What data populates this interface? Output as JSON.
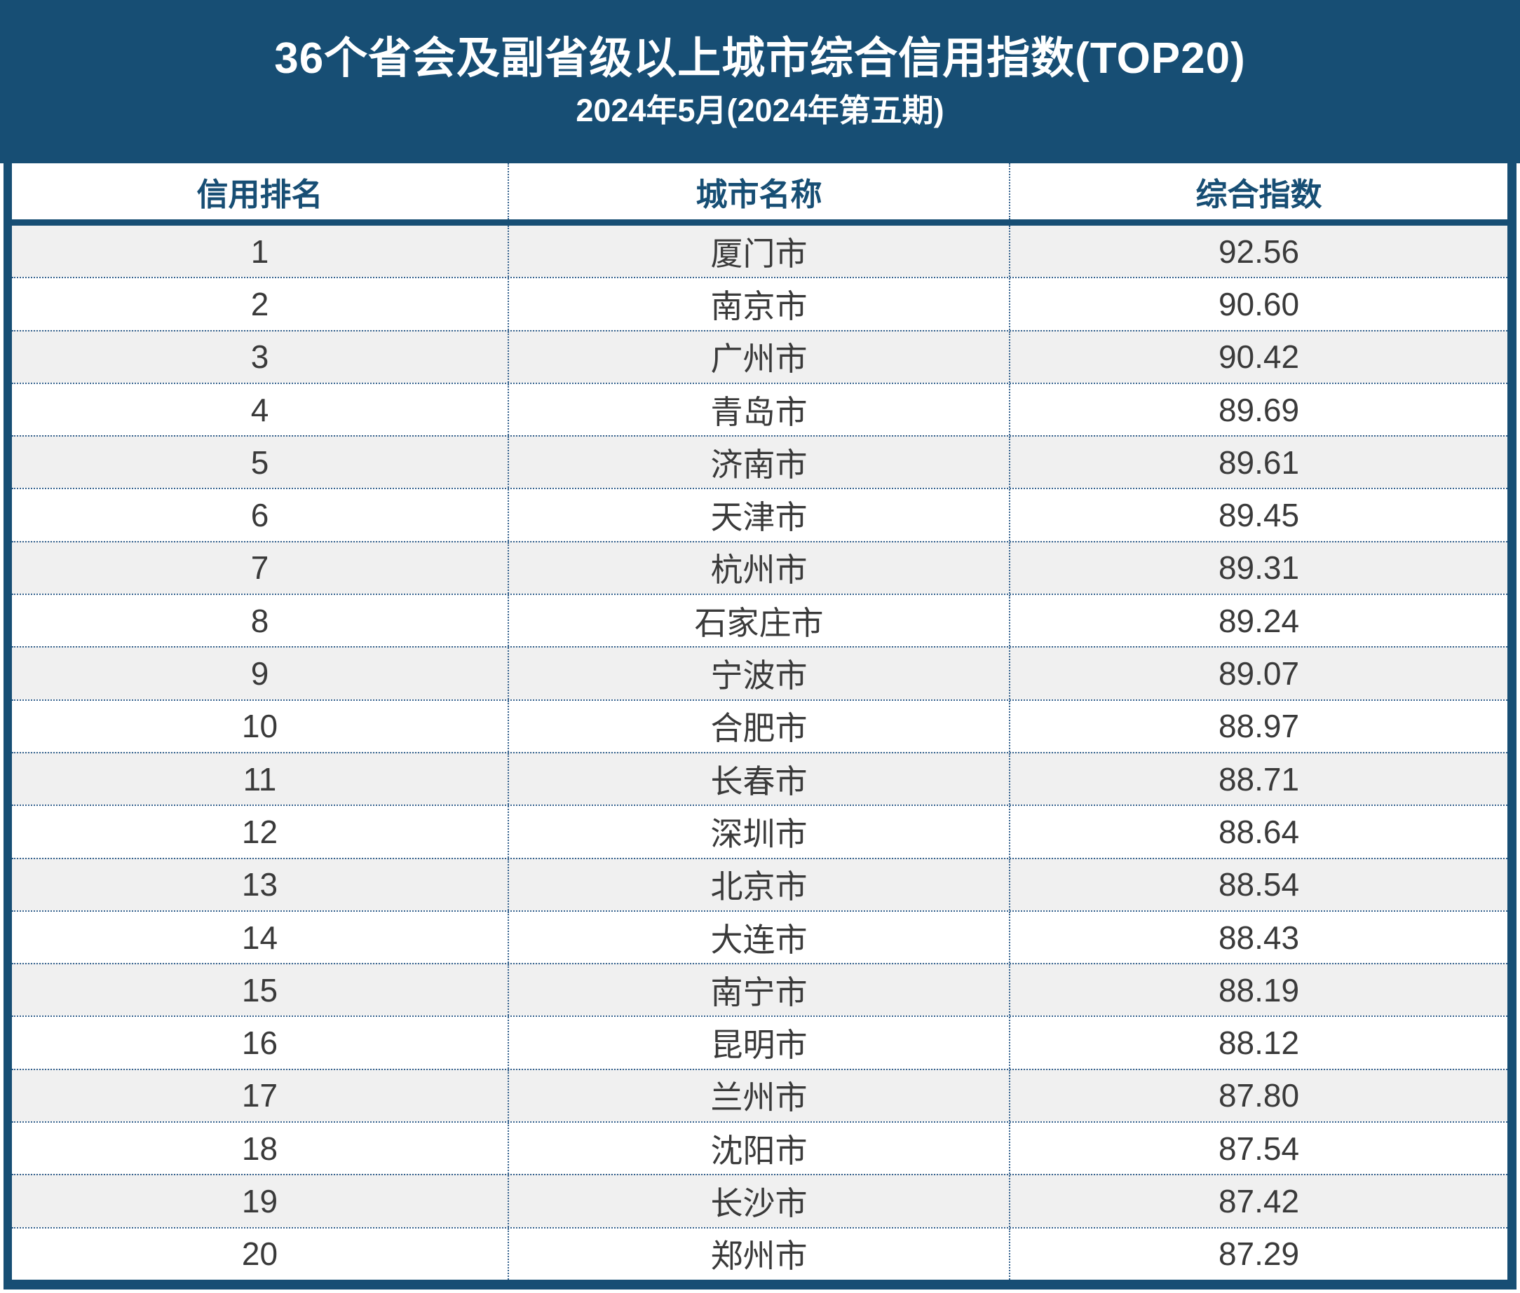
{
  "title": {
    "line1": "36个省会及副省级以上城市综合信用指数(TOP20)",
    "line2": "2024年5月(2024年第五期)"
  },
  "chart_data": {
    "type": "table",
    "title": "36个省会及副省级以上城市综合信用指数(TOP20)",
    "subtitle": "2024年5月(2024年第五期)",
    "columns": [
      "信用排名",
      "城市名称",
      "综合指数"
    ],
    "rows": [
      [
        1,
        "厦门市",
        "92.56"
      ],
      [
        2,
        "南京市",
        "90.60"
      ],
      [
        3,
        "广州市",
        "90.42"
      ],
      [
        4,
        "青岛市",
        "89.69"
      ],
      [
        5,
        "济南市",
        "89.61"
      ],
      [
        6,
        "天津市",
        "89.45"
      ],
      [
        7,
        "杭州市",
        "89.31"
      ],
      [
        8,
        "石家庄市",
        "89.24"
      ],
      [
        9,
        "宁波市",
        "89.07"
      ],
      [
        10,
        "合肥市",
        "88.97"
      ],
      [
        11,
        "长春市",
        "88.71"
      ],
      [
        12,
        "深圳市",
        "88.64"
      ],
      [
        13,
        "北京市",
        "88.54"
      ],
      [
        14,
        "大连市",
        "88.43"
      ],
      [
        15,
        "南宁市",
        "88.19"
      ],
      [
        16,
        "昆明市",
        "88.12"
      ],
      [
        17,
        "兰州市",
        "87.80"
      ],
      [
        18,
        "沈阳市",
        "87.54"
      ],
      [
        19,
        "长沙市",
        "87.42"
      ],
      [
        20,
        "郑州市",
        "87.29"
      ]
    ],
    "layout": {
      "ranking_order": "descending_index",
      "row_striping": "odd_rows_gray",
      "grid": "dotted_separators"
    }
  },
  "colors": {
    "primary": "#174E74",
    "dotted": "#34618D",
    "row_alt": "#F0F0F0",
    "row_main": "#FFFFFF",
    "text": "#3A3A3A",
    "title_text": "#FFFFFF"
  }
}
